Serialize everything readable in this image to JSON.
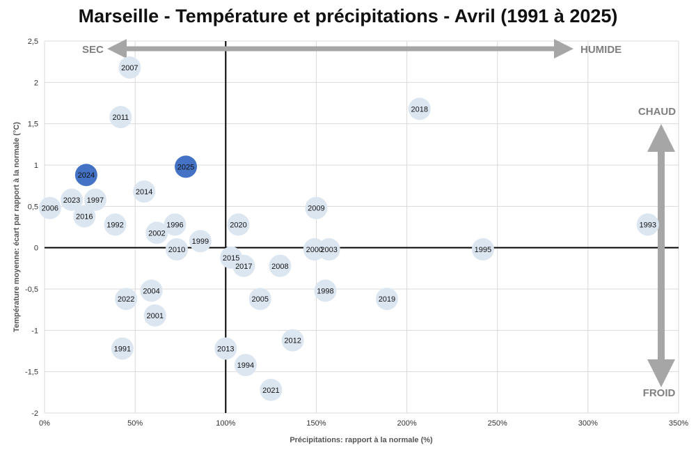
{
  "chart_data": {
    "type": "scatter",
    "title": "Marseille - Température et précipitations - Avril (1991 à 2025)",
    "xlabel": "Précipitations: rapport à la normale (%)",
    "ylabel": "Température moyenne: écart par rapport à la normale (°C)",
    "xlim": [
      0,
      350
    ],
    "ylim": [
      -2,
      2.5
    ],
    "x_ticks": [
      0,
      50,
      100,
      150,
      200,
      250,
      300,
      350
    ],
    "x_tick_labels": [
      "0%",
      "50%",
      "100%",
      "150%",
      "200%",
      "250%",
      "300%",
      "350%"
    ],
    "y_ticks": [
      2.5,
      2,
      1.5,
      1,
      0.5,
      0,
      -0.5,
      -1,
      -1.5,
      -2
    ],
    "y_tick_labels": [
      "2,5",
      "2",
      "1,5",
      "1",
      "0,5",
      "0",
      "-0,5",
      "-1",
      "-1,5",
      "-2"
    ],
    "grid": true,
    "reference_lines": {
      "x": 100,
      "y": 0
    },
    "colors": {
      "points": "#dce6f1",
      "highlight": "#4472c4",
      "arrows": "#a6a6a6",
      "corner_text": "#7f7f7f"
    },
    "corner_labels": {
      "sec": "SEC",
      "humide": "HUMIDE",
      "chaud": "CHAUD",
      "froid": "FROID"
    },
    "points": [
      {
        "label": "1991",
        "x": 43,
        "y": -1.22
      },
      {
        "label": "1992",
        "x": 39,
        "y": 0.28
      },
      {
        "label": "1993",
        "x": 333,
        "y": 0.28
      },
      {
        "label": "1994",
        "x": 111,
        "y": -1.42
      },
      {
        "label": "1995",
        "x": 242,
        "y": -0.02
      },
      {
        "label": "1996",
        "x": 72,
        "y": 0.28
      },
      {
        "label": "1997",
        "x": 28,
        "y": 0.58
      },
      {
        "label": "1998",
        "x": 155,
        "y": -0.52
      },
      {
        "label": "1999",
        "x": 86,
        "y": 0.08
      },
      {
        "label": "2000",
        "x": 149,
        "y": -0.02
      },
      {
        "label": "2001",
        "x": 61,
        "y": -0.82
      },
      {
        "label": "2002",
        "x": 62,
        "y": 0.18
      },
      {
        "label": "2003",
        "x": 157,
        "y": -0.02
      },
      {
        "label": "2004",
        "x": 59,
        "y": -0.52
      },
      {
        "label": "2005",
        "x": 119,
        "y": -0.62
      },
      {
        "label": "2006",
        "x": 3,
        "y": 0.48
      },
      {
        "label": "2007",
        "x": 47,
        "y": 2.18
      },
      {
        "label": "2008",
        "x": 130,
        "y": -0.22
      },
      {
        "label": "2009",
        "x": 150,
        "y": 0.48
      },
      {
        "label": "2010",
        "x": 73,
        "y": -0.02
      },
      {
        "label": "2011",
        "x": 42,
        "y": 1.58
      },
      {
        "label": "2012",
        "x": 137,
        "y": -1.12
      },
      {
        "label": "2013",
        "x": 100,
        "y": -1.22
      },
      {
        "label": "2014",
        "x": 55,
        "y": 0.68
      },
      {
        "label": "2015",
        "x": 103,
        "y": -0.12
      },
      {
        "label": "2016",
        "x": 22,
        "y": 0.38
      },
      {
        "label": "2017",
        "x": 110,
        "y": -0.22
      },
      {
        "label": "2018",
        "x": 207,
        "y": 1.68
      },
      {
        "label": "2019",
        "x": 189,
        "y": -0.62
      },
      {
        "label": "2020",
        "x": 107,
        "y": 0.28
      },
      {
        "label": "2021",
        "x": 125,
        "y": -1.72
      },
      {
        "label": "2022",
        "x": 45,
        "y": -0.62
      },
      {
        "label": "2023",
        "x": 15,
        "y": 0.58
      },
      {
        "label": "2024",
        "x": 23,
        "y": 0.88,
        "highlight": true
      },
      {
        "label": "2025",
        "x": 78,
        "y": 0.98,
        "highlight": true
      }
    ]
  }
}
